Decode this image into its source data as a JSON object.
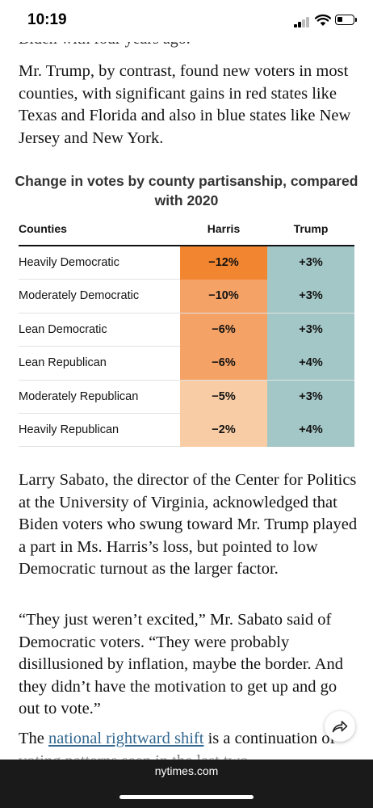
{
  "status_bar": {
    "time": "10:19"
  },
  "article": {
    "cut_line": "Biden with four years ago.",
    "para1": "Mr. Trump, by contrast, found new voters in most counties, with significant gains in red states like Texas and Florida and also in blue states like New Jersey and New York.",
    "para2": "Larry Sabato, the director of the Center for Politics at the University of Virginia, acknowledged that Biden voters who swung toward Mr. Trump played a part in Ms. Harris’s loss, but pointed to low Democratic turnout as the larger factor.",
    "para3": "“They just weren’t excited,” Mr. Sabato said of Democratic voters. “They were probably disillusioned by inflation, maybe the border. And they didn’t have the motivation to get up and go out to vote.”",
    "para4_start": "The ",
    "para4_link": "national rightward shift",
    "para4_end": " is a continuation of voting patterns seen in the last two"
  },
  "chart_data": {
    "type": "table",
    "title": "Change in votes by county partisanship, compared with 2020",
    "columns": [
      "Counties",
      "Harris",
      "Trump"
    ],
    "rows": [
      {
        "label": "Heavily Democratic",
        "harris": "−12%",
        "trump": "+3%",
        "harris_value": -12,
        "trump_value": 3,
        "harris_color": "#f2852f"
      },
      {
        "label": "Moderately Democratic",
        "harris": "−10%",
        "trump": "+3%",
        "harris_value": -10,
        "trump_value": 3,
        "harris_color": "#f4a266"
      },
      {
        "label": "Lean Democratic",
        "harris": "−6%",
        "trump": "+3%",
        "harris_value": -6,
        "trump_value": 3,
        "harris_color": "#f4a266"
      },
      {
        "label": "Lean Republican",
        "harris": "−6%",
        "trump": "+4%",
        "harris_value": -6,
        "trump_value": 4,
        "harris_color": "#f4a266"
      },
      {
        "label": "Moderately Republican",
        "harris": "−5%",
        "trump": "+3%",
        "harris_value": -5,
        "trump_value": 3,
        "harris_color": "#f8cca4"
      },
      {
        "label": "Heavily Republican",
        "harris": "−2%",
        "trump": "+4%",
        "harris_value": -2,
        "trump_value": 4,
        "harris_color": "#f8cca4"
      }
    ],
    "trump_color": "#a3c7c6"
  },
  "browser": {
    "url": "nytimes.com"
  },
  "icons": {
    "share": "share-arrow-icon",
    "signal": "cellular-signal-icon",
    "wifi": "wifi-icon",
    "battery": "battery-icon"
  }
}
